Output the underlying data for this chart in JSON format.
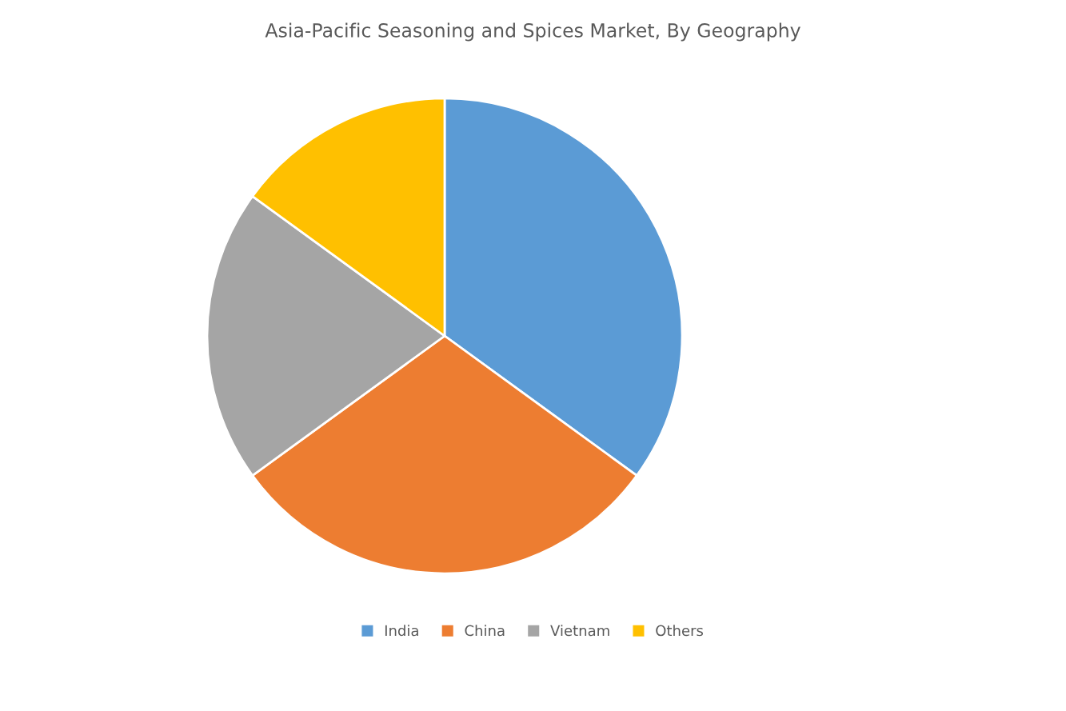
{
  "chart_data": {
    "type": "pie",
    "title": "Asia-Pacific Seasoning and Spices Market, By Geography",
    "categories": [
      "India",
      "China",
      "Vietnam",
      "Others"
    ],
    "values": [
      35,
      30,
      20,
      15
    ],
    "colors": [
      "#5b9bd5",
      "#ed7d31",
      "#a5a5a5",
      "#ffc000"
    ],
    "legend": "bottom"
  }
}
